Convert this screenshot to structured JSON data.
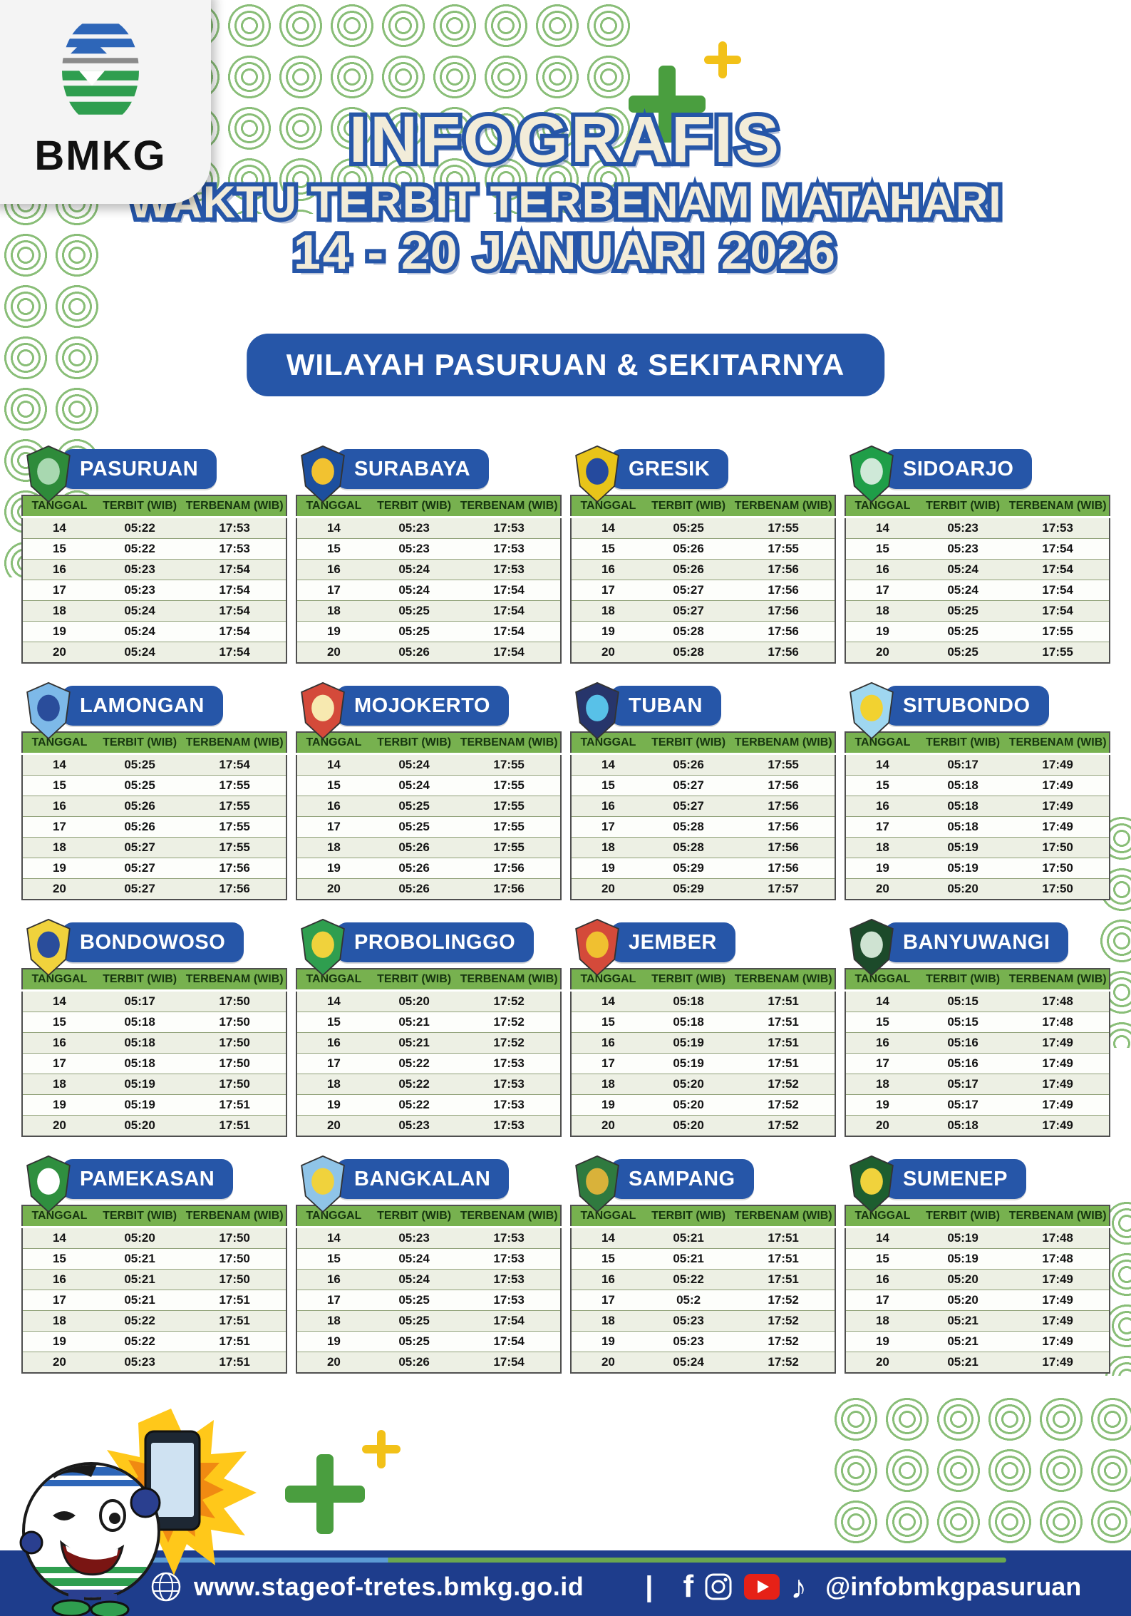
{
  "header": {
    "logo_text": "BMKG",
    "title": "INFOGRAFIS",
    "subtitle": "WAKTU TERBIT TERBENAM MATAHARI",
    "date_range": "14 - 20 JANUARI  2026",
    "region_banner": "WILAYAH PASURUAN & SEKITARNYA"
  },
  "table": {
    "columns": [
      "TANGGAL",
      "TERBIT (WIB)",
      "TERBENAM (WIB)"
    ]
  },
  "cities": [
    {
      "name": "PASURUAN",
      "emblem": [
        "#2e8b3a",
        "#a8d8b0"
      ],
      "rows": [
        [
          "14",
          "05:22",
          "17:53"
        ],
        [
          "15",
          "05:22",
          "17:53"
        ],
        [
          "16",
          "05:23",
          "17:54"
        ],
        [
          "17",
          "05:23",
          "17:54"
        ],
        [
          "18",
          "05:24",
          "17:54"
        ],
        [
          "19",
          "05:24",
          "17:54"
        ],
        [
          "20",
          "05:24",
          "17:54"
        ]
      ]
    },
    {
      "name": "SURABAYA",
      "emblem": [
        "#1d4f9e",
        "#f2c230"
      ],
      "rows": [
        [
          "14",
          "05:23",
          "17:53"
        ],
        [
          "15",
          "05:23",
          "17:53"
        ],
        [
          "16",
          "05:24",
          "17:53"
        ],
        [
          "17",
          "05:24",
          "17:54"
        ],
        [
          "18",
          "05:25",
          "17:54"
        ],
        [
          "19",
          "05:25",
          "17:54"
        ],
        [
          "20",
          "05:26",
          "17:54"
        ]
      ]
    },
    {
      "name": "GRESIK",
      "emblem": [
        "#e8c419",
        "#254a9e"
      ],
      "rows": [
        [
          "14",
          "05:25",
          "17:55"
        ],
        [
          "15",
          "05:26",
          "17:55"
        ],
        [
          "16",
          "05:26",
          "17:56"
        ],
        [
          "17",
          "05:27",
          "17:56"
        ],
        [
          "18",
          "05:27",
          "17:56"
        ],
        [
          "19",
          "05:28",
          "17:56"
        ],
        [
          "20",
          "05:28",
          "17:56"
        ]
      ]
    },
    {
      "name": "SIDOARJO",
      "emblem": [
        "#1f9e48",
        "#cfe9d8"
      ],
      "rows": [
        [
          "14",
          "05:23",
          "17:53"
        ],
        [
          "15",
          "05:23",
          "17:54"
        ],
        [
          "16",
          "05:24",
          "17:54"
        ],
        [
          "17",
          "05:24",
          "17:54"
        ],
        [
          "18",
          "05:25",
          "17:54"
        ],
        [
          "19",
          "05:25",
          "17:55"
        ],
        [
          "20",
          "05:25",
          "17:55"
        ]
      ]
    },
    {
      "name": "LAMONGAN",
      "emblem": [
        "#7db9e8",
        "#2a4d9b"
      ],
      "rows": [
        [
          "14",
          "05:25",
          "17:54"
        ],
        [
          "15",
          "05:25",
          "17:55"
        ],
        [
          "16",
          "05:26",
          "17:55"
        ],
        [
          "17",
          "05:26",
          "17:55"
        ],
        [
          "18",
          "05:27",
          "17:55"
        ],
        [
          "19",
          "05:27",
          "17:56"
        ],
        [
          "20",
          "05:27",
          "17:56"
        ]
      ]
    },
    {
      "name": "MOJOKERTO",
      "emblem": [
        "#d44a3a",
        "#f7e9b0"
      ],
      "rows": [
        [
          "14",
          "05:24",
          "17:55"
        ],
        [
          "15",
          "05:24",
          "17:55"
        ],
        [
          "16",
          "05:25",
          "17:55"
        ],
        [
          "17",
          "05:25",
          "17:55"
        ],
        [
          "18",
          "05:26",
          "17:55"
        ],
        [
          "19",
          "05:26",
          "17:56"
        ],
        [
          "20",
          "05:26",
          "17:56"
        ]
      ]
    },
    {
      "name": "TUBAN",
      "emblem": [
        "#27356b",
        "#58c1e8"
      ],
      "rows": [
        [
          "14",
          "05:26",
          "17:55"
        ],
        [
          "15",
          "05:27",
          "17:56"
        ],
        [
          "16",
          "05:27",
          "17:56"
        ],
        [
          "17",
          "05:28",
          "17:56"
        ],
        [
          "18",
          "05:28",
          "17:56"
        ],
        [
          "19",
          "05:29",
          "17:56"
        ],
        [
          "20",
          "05:29",
          "17:57"
        ]
      ]
    },
    {
      "name": "SITUBONDO",
      "emblem": [
        "#9fd7f0",
        "#f2d230"
      ],
      "rows": [
        [
          "14",
          "05:17",
          "17:49"
        ],
        [
          "15",
          "05:18",
          "17:49"
        ],
        [
          "16",
          "05:18",
          "17:49"
        ],
        [
          "17",
          "05:18",
          "17:49"
        ],
        [
          "18",
          "05:19",
          "17:50"
        ],
        [
          "19",
          "05:19",
          "17:50"
        ],
        [
          "20",
          "05:20",
          "17:50"
        ]
      ]
    },
    {
      "name": "BONDOWOSO",
      "emblem": [
        "#f0d23c",
        "#2a4d9b"
      ],
      "rows": [
        [
          "14",
          "05:17",
          "17:50"
        ],
        [
          "15",
          "05:18",
          "17:50"
        ],
        [
          "16",
          "05:18",
          "17:50"
        ],
        [
          "17",
          "05:18",
          "17:50"
        ],
        [
          "18",
          "05:19",
          "17:50"
        ],
        [
          "19",
          "05:19",
          "17:51"
        ],
        [
          "20",
          "05:20",
          "17:51"
        ]
      ]
    },
    {
      "name": "PROBOLINGGO",
      "emblem": [
        "#2f9e4f",
        "#f0d23c"
      ],
      "rows": [
        [
          "14",
          "05:20",
          "17:52"
        ],
        [
          "15",
          "05:21",
          "17:52"
        ],
        [
          "16",
          "05:21",
          "17:52"
        ],
        [
          "17",
          "05:22",
          "17:53"
        ],
        [
          "18",
          "05:22",
          "17:53"
        ],
        [
          "19",
          "05:22",
          "17:53"
        ],
        [
          "20",
          "05:23",
          "17:53"
        ]
      ]
    },
    {
      "name": "JEMBER",
      "emblem": [
        "#d44a3a",
        "#f0c030"
      ],
      "rows": [
        [
          "14",
          "05:18",
          "17:51"
        ],
        [
          "15",
          "05:18",
          "17:51"
        ],
        [
          "16",
          "05:19",
          "17:51"
        ],
        [
          "17",
          "05:19",
          "17:51"
        ],
        [
          "18",
          "05:20",
          "17:52"
        ],
        [
          "19",
          "05:20",
          "17:52"
        ],
        [
          "20",
          "05:20",
          "17:52"
        ]
      ]
    },
    {
      "name": "BANYUWANGI",
      "emblem": [
        "#1c4a2a",
        "#cfe3d2"
      ],
      "rows": [
        [
          "14",
          "05:15",
          "17:48"
        ],
        [
          "15",
          "05:15",
          "17:48"
        ],
        [
          "16",
          "05:16",
          "17:49"
        ],
        [
          "17",
          "05:16",
          "17:49"
        ],
        [
          "18",
          "05:17",
          "17:49"
        ],
        [
          "19",
          "05:17",
          "17:49"
        ],
        [
          "20",
          "05:18",
          "17:49"
        ]
      ]
    },
    {
      "name": "PAMEKASAN",
      "emblem": [
        "#2f8f3f",
        "#ffffff"
      ],
      "rows": [
        [
          "14",
          "05:20",
          "17:50"
        ],
        [
          "15",
          "05:21",
          "17:50"
        ],
        [
          "16",
          "05:21",
          "17:50"
        ],
        [
          "17",
          "05:21",
          "17:51"
        ],
        [
          "18",
          "05:22",
          "17:51"
        ],
        [
          "19",
          "05:22",
          "17:51"
        ],
        [
          "20",
          "05:23",
          "17:51"
        ]
      ]
    },
    {
      "name": "BANGKALAN",
      "emblem": [
        "#8fc4e8",
        "#f0d23c"
      ],
      "rows": [
        [
          "14",
          "05:23",
          "17:53"
        ],
        [
          "15",
          "05:24",
          "17:53"
        ],
        [
          "16",
          "05:24",
          "17:53"
        ],
        [
          "17",
          "05:25",
          "17:53"
        ],
        [
          "18",
          "05:25",
          "17:54"
        ],
        [
          "19",
          "05:25",
          "17:54"
        ],
        [
          "20",
          "05:26",
          "17:54"
        ]
      ]
    },
    {
      "name": "SAMPANG",
      "emblem": [
        "#2f7a3f",
        "#d9b23a"
      ],
      "rows": [
        [
          "14",
          "05:21",
          "17:51"
        ],
        [
          "15",
          "05:21",
          "17:51"
        ],
        [
          "16",
          "05:22",
          "17:51"
        ],
        [
          "17",
          "05:2",
          "17:52"
        ],
        [
          "18",
          "05:23",
          "17:52"
        ],
        [
          "19",
          "05:23",
          "17:52"
        ],
        [
          "20",
          "05:24",
          "17:52"
        ]
      ]
    },
    {
      "name": "SUMENEP",
      "emblem": [
        "#1d5e2f",
        "#f0d23c"
      ],
      "rows": [
        [
          "14",
          "05:19",
          "17:48"
        ],
        [
          "15",
          "05:19",
          "17:48"
        ],
        [
          "16",
          "05:20",
          "17:49"
        ],
        [
          "17",
          "05:20",
          "17:49"
        ],
        [
          "18",
          "05:21",
          "17:49"
        ],
        [
          "19",
          "05:21",
          "17:49"
        ],
        [
          "20",
          "05:21",
          "17:49"
        ]
      ]
    }
  ],
  "footer": {
    "website": "www.stageof-tretes.bmkg.go.id",
    "divider": "|",
    "handle": "@infobmkgpasuruan",
    "facebook_glyph": "f",
    "tiktok_glyph": "♪"
  },
  "colors": {
    "accent_blue": "#2656a8",
    "header_green": "#77b14f",
    "footer_blue": "#1e3d8c",
    "accent_light_blue": "#5b9bd5",
    "accent_green": "#6aa84f",
    "cream": "#f2ecd9",
    "youtube_red": "#e62117"
  }
}
